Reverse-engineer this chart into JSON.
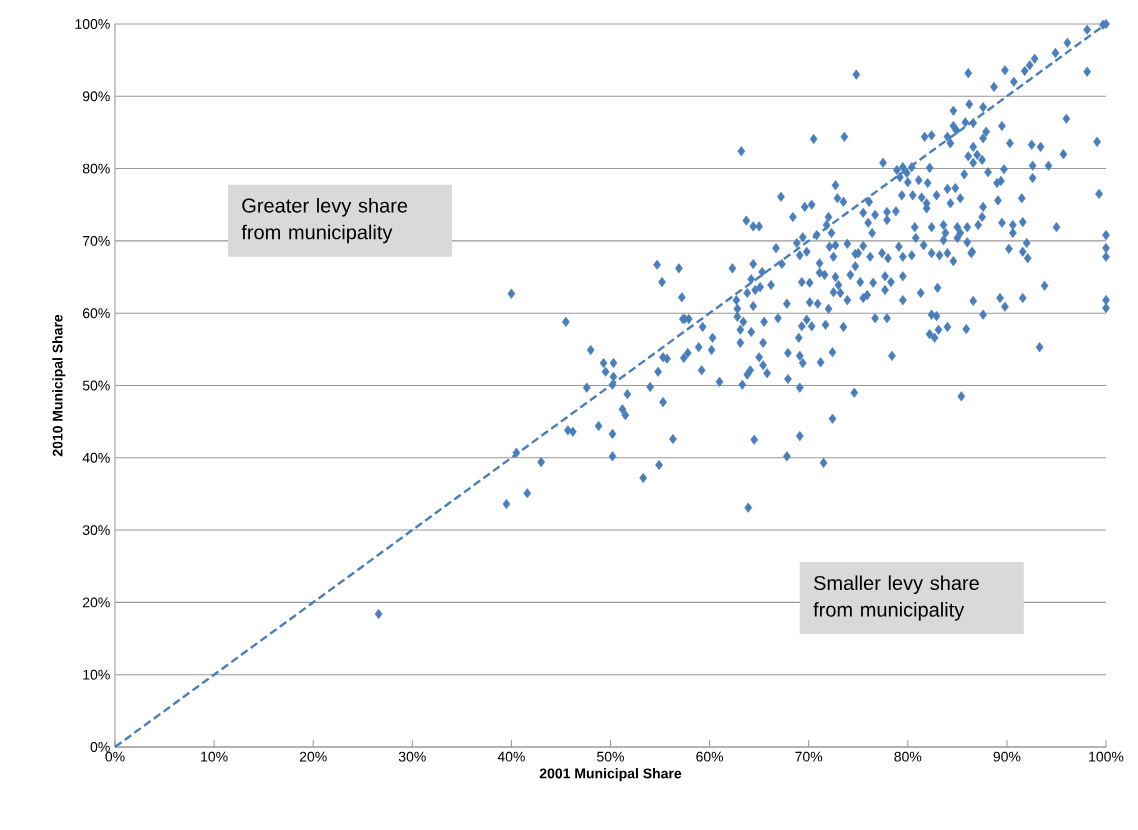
{
  "chart_data": {
    "type": "scatter",
    "xlabel": "2001 Municipal Share",
    "ylabel": "2010 Municipal Share",
    "annotations": [
      "Greater levy share from municipality",
      "Smaller levy share from municipality"
    ],
    "xlim": [
      0,
      100
    ],
    "ylim": [
      0,
      100
    ],
    "xticks": [
      {
        "value": 0,
        "label": "0%"
      },
      {
        "value": 10,
        "label": "10%"
      },
      {
        "value": 20,
        "label": "20%"
      },
      {
        "value": 30,
        "label": "30%"
      },
      {
        "value": 40,
        "label": "40%"
      },
      {
        "value": 50,
        "label": "50%"
      },
      {
        "value": 60,
        "label": "60%"
      },
      {
        "value": 70,
        "label": "70%"
      },
      {
        "value": 80,
        "label": "80%"
      },
      {
        "value": 90,
        "label": "90%"
      },
      {
        "value": 100,
        "label": "100%"
      }
    ],
    "yticks": [
      {
        "value": 0,
        "label": "0%"
      },
      {
        "value": 10,
        "label": "10%"
      },
      {
        "value": 20,
        "label": "20%"
      },
      {
        "value": 30,
        "label": "30%"
      },
      {
        "value": 40,
        "label": "40%"
      },
      {
        "value": 50,
        "label": "50%"
      },
      {
        "value": 60,
        "label": "60%"
      },
      {
        "value": 70,
        "label": "70%"
      },
      {
        "value": 80,
        "label": "80%"
      },
      {
        "value": 90,
        "label": "90%"
      },
      {
        "value": 100,
        "label": "100%"
      }
    ],
    "grid": "y",
    "series": [
      {
        "color": "#4a7ebb",
        "marker": "diamond",
        "x": [
          26.6,
          40.0,
          45.5,
          48.0,
          49.3,
          50.3,
          49.5,
          50.3,
          47.6,
          50.2,
          51.7,
          51.2,
          51.5,
          48.8,
          45.7,
          46.2,
          50.2,
          50.2,
          40.5,
          43.0,
          41.6,
          39.5,
          53.3,
          54.9,
          56.3,
          55.3,
          54.0,
          54.8,
          55.3,
          55.7,
          59.2,
          60.2,
          58.9,
          57.4,
          57.8,
          60.3,
          59.3,
          57.3,
          57.9,
          57.2,
          55.2,
          61.0,
          63.2,
          70.5,
          73.6,
          72.7,
          67.2,
          72.9,
          73.5,
          69.6,
          70.3,
          68.4,
          63.7,
          64.4,
          65.0,
          72.0,
          71.8,
          72.3,
          70.8,
          69.4,
          68.8,
          66.7,
          72.1,
          72.7,
          73.9,
          69.8,
          69.1,
          72.5,
          74.7,
          71.1,
          67.3,
          64.4,
          62.3,
          54.7,
          56.9,
          65.3,
          64.2,
          66.2,
          65.1,
          64.6,
          63.8,
          71.1,
          71.6,
          72.7,
          74.2,
          69.3,
          70.1,
          73.0,
          72.5,
          73.2,
          73.9,
          70.1,
          70.9,
          67.8,
          64.4,
          62.7,
          62.8,
          72.0,
          62.8,
          63.4,
          66.9,
          65.5,
          69.8,
          69.3,
          70.3,
          71.7,
          73.5,
          57.5,
          64.2,
          63.1,
          69.0,
          63.1,
          65.4,
          63.3,
          64.1,
          63.8,
          65.0,
          65.4,
          65.8,
          64.5,
          63.9,
          67.9,
          69.1,
          69.4,
          67.9,
          69.1,
          71.2,
          72.4,
          74.6,
          72.4,
          69.1,
          67.8,
          71.5,
          74.8,
          86.1,
          89.8,
          90.7,
          88.7,
          91.8,
          92.3,
          92.8,
          94.9,
          96.1,
          98.1,
          99.7,
          100,
          98.1,
          96.0,
          99.1,
          84.6,
          86.2,
          87.6,
          84.6,
          84.9,
          85.8,
          86.6,
          87.9,
          87.6,
          89.5,
          81.7,
          82.4,
          84.0,
          84.3,
          90.3,
          92.5,
          93.4,
          86.6,
          86.1,
          87.0,
          86.6,
          87.5,
          95.7,
          77.5,
          78.9,
          79.5,
          80.4,
          79.2,
          79.9,
          82.2,
          81.1,
          82.0,
          80.0,
          85.7,
          88.1,
          89.7,
          92.6,
          94.2,
          92.6,
          89.0,
          89.4,
          99.3,
          79.4,
          80.5,
          81.4,
          82.9,
          84.0,
          84.8,
          85.3,
          81.9,
          84.3,
          89.1,
          91.5,
          81.9,
          76.1,
          75.5,
          76.7,
          77.9,
          78.8,
          77.9,
          76.0,
          76.4,
          87.6,
          87.5,
          87.1,
          89.5,
          90.6,
          91.6,
          95.0,
          90.6,
          100,
          100,
          100,
          80.7,
          82.4,
          83.6,
          85.0,
          86.0,
          83.8,
          85.3,
          80.8,
          83.6,
          85.0,
          86.0,
          75.5,
          75.0,
          76.2,
          77.4,
          78.0,
          79.1,
          79.5,
          80.4,
          81.6,
          82.4,
          83.2,
          84.0,
          84.6,
          86.5,
          90.2,
          91.6,
          92.0,
          92.1,
          74.7,
          75.2,
          76.5,
          77.7,
          78.3,
          77.7,
          79.5,
          75.5,
          75.9,
          79.5,
          81.3,
          83.0,
          76.7,
          77.9,
          82.4,
          82.9,
          82.2,
          82.7,
          83.1,
          84.0,
          85.9,
          87.6,
          86.6,
          89.3,
          89.8,
          91.6,
          93.8,
          93.3,
          78.4,
          85.4,
          100,
          100,
          86.4
        ],
        "values": [
          18.4,
          62.7,
          58.8,
          54.9,
          53.1,
          53.1,
          51.9,
          51.2,
          49.7,
          50.1,
          48.8,
          46.7,
          45.9,
          44.4,
          43.8,
          43.6,
          43.3,
          40.2,
          40.7,
          39.4,
          35.1,
          33.6,
          37.2,
          39.0,
          42.6,
          47.7,
          49.8,
          51.9,
          53.9,
          53.7,
          52.1,
          54.9,
          55.3,
          53.8,
          54.5,
          56.6,
          58.1,
          59.2,
          59.2,
          62.2,
          64.3,
          50.5,
          82.4,
          84.1,
          84.4,
          77.7,
          76.1,
          75.9,
          75.4,
          74.7,
          75.0,
          73.3,
          72.8,
          72.0,
          72.0,
          73.3,
          72.2,
          71.1,
          70.8,
          70.5,
          69.7,
          69.0,
          69.2,
          69.4,
          69.6,
          68.5,
          68.0,
          67.8,
          68.2,
          66.9,
          66.8,
          66.8,
          66.2,
          66.7,
          66.2,
          65.7,
          64.7,
          63.9,
          63.6,
          63.2,
          62.8,
          65.6,
          65.3,
          65.0,
          65.3,
          64.3,
          64.2,
          63.9,
          62.9,
          62.8,
          61.8,
          61.5,
          61.3,
          61.3,
          61.0,
          61.8,
          60.6,
          60.6,
          59.5,
          58.8,
          59.3,
          58.8,
          59.1,
          58.2,
          58.2,
          58.4,
          58.1,
          59.2,
          57.4,
          57.7,
          56.6,
          55.9,
          55.9,
          50.1,
          52.1,
          51.5,
          53.9,
          52.8,
          51.7,
          42.5,
          33.1,
          54.5,
          54.1,
          53.1,
          50.9,
          49.7,
          53.2,
          54.6,
          49.0,
          45.4,
          43.0,
          40.2,
          39.3,
          93.0,
          93.2,
          93.6,
          92.0,
          91.3,
          93.5,
          94.3,
          95.2,
          96.0,
          97.4,
          99.2,
          99.9,
          100,
          93.4,
          86.9,
          83.7,
          88.0,
          88.9,
          88.5,
          85.9,
          85.3,
          86.4,
          86.3,
          85.1,
          84.2,
          85.9,
          84.4,
          84.6,
          84.4,
          83.5,
          83.5,
          83.3,
          83.0,
          83.0,
          81.7,
          81.9,
          80.8,
          81.2,
          82.0,
          80.8,
          79.8,
          80.2,
          80.2,
          78.8,
          79.4,
          80.1,
          78.4,
          78.0,
          78.1,
          79.2,
          79.5,
          79.9,
          80.4,
          80.4,
          78.7,
          78.0,
          78.3,
          76.5,
          76.3,
          76.3,
          76.0,
          76.3,
          77.2,
          77.3,
          75.9,
          75.2,
          75.2,
          75.6,
          75.9,
          74.5,
          75.4,
          73.9,
          73.6,
          74.0,
          74.1,
          72.9,
          72.5,
          71.1,
          74.7,
          73.3,
          72.2,
          72.5,
          72.2,
          72.6,
          71.9,
          71.1,
          70.8,
          69.0,
          67.8,
          71.9,
          71.9,
          72.2,
          71.9,
          71.9,
          71.1,
          71.1,
          70.4,
          70.1,
          70.4,
          69.8,
          69.3,
          68.3,
          67.8,
          68.3,
          67.6,
          69.2,
          67.8,
          68.0,
          69.4,
          68.3,
          68.0,
          68.3,
          67.2,
          68.5,
          68.9,
          68.5,
          69.7,
          67.6,
          66.5,
          64.3,
          64.2,
          65.1,
          64.3,
          63.2,
          65.1,
          62.1,
          62.5,
          61.8,
          62.8,
          63.5,
          59.3,
          59.3,
          59.8,
          59.6,
          57.1,
          56.6,
          57.7,
          58.1,
          57.8,
          59.8,
          61.7,
          62.1,
          60.9,
          62.1,
          63.8,
          55.3,
          54.1,
          48.5,
          61.8,
          60.7,
          68.3
        ]
      },
      {
        "type": "line",
        "color": "#4a7ebb",
        "line_style": "dashed",
        "marker": "none",
        "x": [
          0,
          100
        ],
        "values": [
          0,
          100
        ]
      }
    ]
  }
}
